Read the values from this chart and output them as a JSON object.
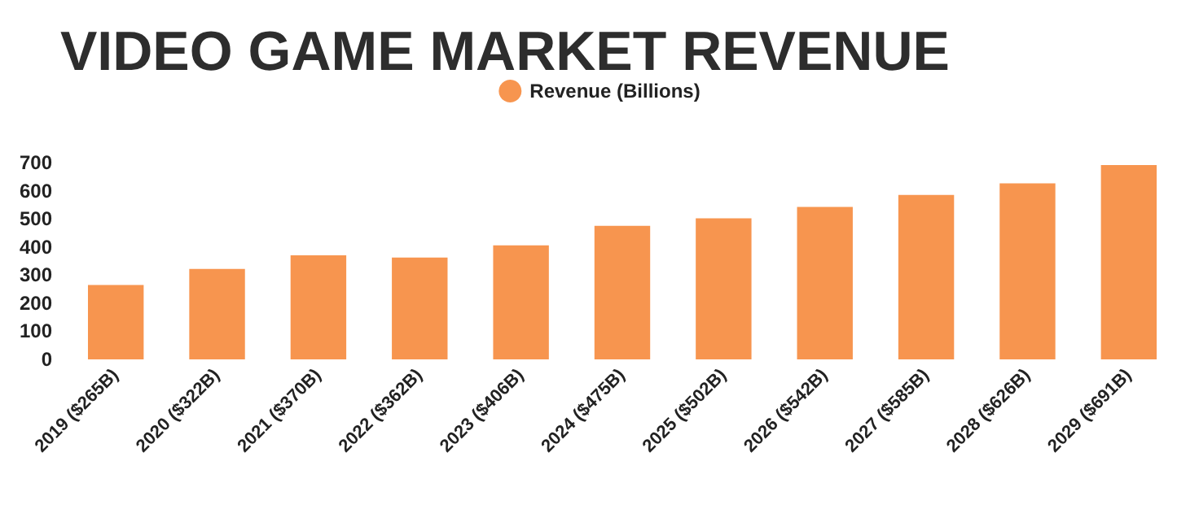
{
  "chart_data": {
    "type": "bar",
    "title": "VIDEO GAME MARKET REVENUE",
    "categories": [
      "2019 ($265B)",
      "2020 ($322B)",
      "2021 ($370B)",
      "2022 ($362B)",
      "2023 ($406B)",
      "2024 ($475B)",
      "2025 ($502B)",
      "2026 ($542B)",
      "2027 ($585B)",
      "2028 ($626B)",
      "2029 ($691B)"
    ],
    "series": [
      {
        "name": "Revenue (Billions)",
        "color": "#f7954f",
        "values": [
          265,
          322,
          370,
          362,
          406,
          475,
          502,
          542,
          585,
          626,
          691
        ]
      }
    ],
    "ylim": [
      0,
      700
    ],
    "yticks": [
      0,
      100,
      200,
      300,
      400,
      500,
      600,
      700
    ],
    "grid": false,
    "legend": "top"
  }
}
